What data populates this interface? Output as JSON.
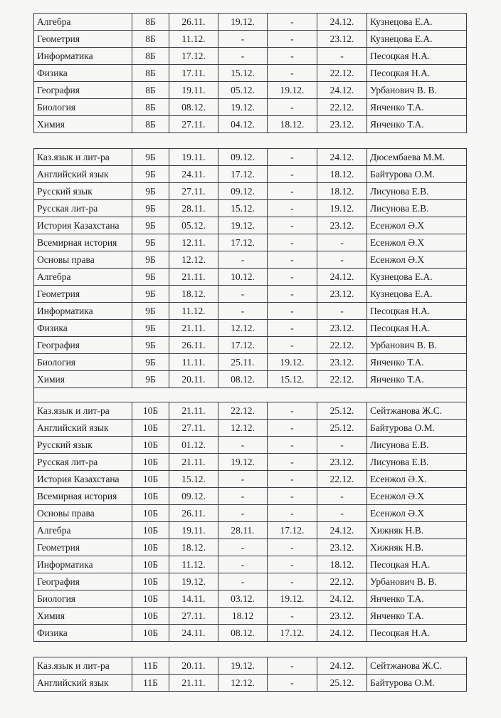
{
  "tables": [
    {
      "rows": [
        [
          "Алгебра",
          "8Б",
          "26.11.",
          "19.12.",
          "-",
          "24.12.",
          "Кузнецова Е.А."
        ],
        [
          "Геометрия",
          "8Б",
          "11.12.",
          "-",
          "-",
          "23.12.",
          "Кузнецова Е.А."
        ],
        [
          "Информатика",
          "8Б",
          "17.12.",
          "-",
          "-",
          "-",
          "Песоцкая Н.А."
        ],
        [
          "Физика",
          "8Б",
          "17.11.",
          "15.12.",
          "-",
          "22.12.",
          "Песоцкая Н.А."
        ],
        [
          "География",
          "8Б",
          "19.11.",
          "05.12.",
          "19.12.",
          "24.12.",
          "Урбанович В. В."
        ],
        [
          "Биология",
          "8Б",
          "08.12.",
          "19.12.",
          "-",
          "22.12.",
          "Янченко Т.А."
        ],
        [
          "Химия",
          "8Б",
          "27.11.",
          "04.12.",
          "18.12.",
          "23.12.",
          "Янченко Т.А."
        ]
      ]
    },
    {
      "rows": [
        [
          "Каз.язык и лит-ра",
          "9Б",
          "19.11.",
          "09.12.",
          "-",
          "24.12.",
          "Дюсембаева М.М."
        ],
        [
          "Английский язык",
          "9Б",
          "24.11.",
          "17.12.",
          "-",
          "18.12.",
          "Байтурова О.М."
        ],
        [
          "Русский язык",
          "9Б",
          "27.11.",
          "09.12.",
          "-",
          "18.12.",
          "Лисунова Е.В."
        ],
        [
          "Русская лит-ра",
          "9Б",
          "28.11.",
          "15.12.",
          "-",
          "19.12.",
          "Лисунова Е.В."
        ],
        [
          "История Казахстана",
          "9Б",
          "05.12.",
          "19.12.",
          "-",
          "23.12.",
          "Есенжол Ә.Х"
        ],
        [
          "Всемирная история",
          "9Б",
          "12.11.",
          "17.12.",
          "-",
          "-",
          "Есенжол Ә.Х"
        ],
        [
          "Основы права",
          "9Б",
          "12.12.",
          "-",
          "-",
          "-",
          "Есенжол Ә.Х"
        ],
        [
          "Алгебра",
          "9Б",
          "21.11.",
          "10.12.",
          "-",
          "24.12.",
          "Кузнецова Е.А."
        ],
        [
          "Геометрия",
          "9Б",
          "18.12.",
          "-",
          "-",
          "23.12.",
          "Кузнецова Е.А."
        ],
        [
          "Информатика",
          "9Б",
          "11.12.",
          "-",
          "-",
          "-",
          "Песоцкая Н.А."
        ],
        [
          "Физика",
          "9Б",
          "21.11.",
          "12.12.",
          "-",
          "23.12.",
          "Песоцкая Н.А."
        ],
        [
          "География",
          "9Б",
          "26.11.",
          "17.12.",
          "-",
          "22.12.",
          "Урбанович В. В."
        ],
        [
          "Биология",
          "9Б",
          "11.11.",
          "25.11.",
          "19.12.",
          "23.12.",
          "Янченко Т.А."
        ],
        [
          "Химия",
          "9Б",
          "20.11.",
          "08.12.",
          "15.12.",
          "22.12.",
          "Янченко Т.А."
        ]
      ],
      "rows_after_blank": [
        [
          "Каз.язык и лит-ра",
          "10Б",
          "21.11.",
          "22.12.",
          "-",
          "25.12.",
          "Сейтжанова Ж.С."
        ],
        [
          "Английский язык",
          "10Б",
          "27.11.",
          "12.12.",
          "-",
          "25.12.",
          "Байтурова О.М."
        ],
        [
          "Русский язык",
          "10Б",
          "01.12.",
          "-",
          "-",
          "-",
          "Лисунова Е.В."
        ],
        [
          "Русская лит-ра",
          "10Б",
          "21.11.",
          "19.12.",
          "-",
          "23.12.",
          "Лисунова Е.В."
        ],
        [
          "История Казахстана",
          "10Б",
          "15.12.",
          "-",
          "-",
          "22.12.",
          "Есенжол Ә.Х."
        ],
        [
          "Всемирная история",
          "10Б",
          "09.12.",
          "-",
          "-",
          "-",
          "Есенжол Ә.Х"
        ],
        [
          "Основы права",
          "10Б",
          "26.11.",
          "-",
          "-",
          "-",
          "Есенжол Ә.Х"
        ],
        [
          "Алгебра",
          "10Б",
          "19.11.",
          "28.11.",
          "17.12.",
          "24.12.",
          "Хижняк Н.В."
        ],
        [
          "Геометрия",
          "10Б",
          "18.12.",
          "-",
          "-",
          "23.12.",
          "Хижняк Н.В."
        ],
        [
          "Информатика",
          "10Б",
          "11.12.",
          "-",
          "-",
          "18.12.",
          "Песоцкая Н.А."
        ],
        [
          "География",
          "10Б",
          "19.12.",
          "-",
          "-",
          "22.12.",
          "Урбанович В. В."
        ],
        [
          "Биология",
          "10Б",
          "14.11.",
          "03.12.",
          "19.12.",
          "24.12.",
          "Янченко Т.А."
        ],
        [
          "Химия",
          "10Б",
          "27.11.",
          "18.12",
          "-",
          "23.12.",
          "Янченко Т.А."
        ],
        [
          "Физика",
          "10Б",
          "24.11.",
          "08.12.",
          "17.12.",
          "24.12.",
          "Песоцкая Н.А."
        ]
      ]
    },
    {
      "rows": [
        [
          "Каз.язык и лит-ра",
          "11Б",
          "20.11.",
          "19.12.",
          "-",
          "24.12.",
          "Сейтжанова Ж.С."
        ],
        [
          "Английский язык",
          "11Б",
          "21.11.",
          "12.12.",
          "-",
          "25.12.",
          "Байтурова О.М."
        ]
      ]
    }
  ]
}
